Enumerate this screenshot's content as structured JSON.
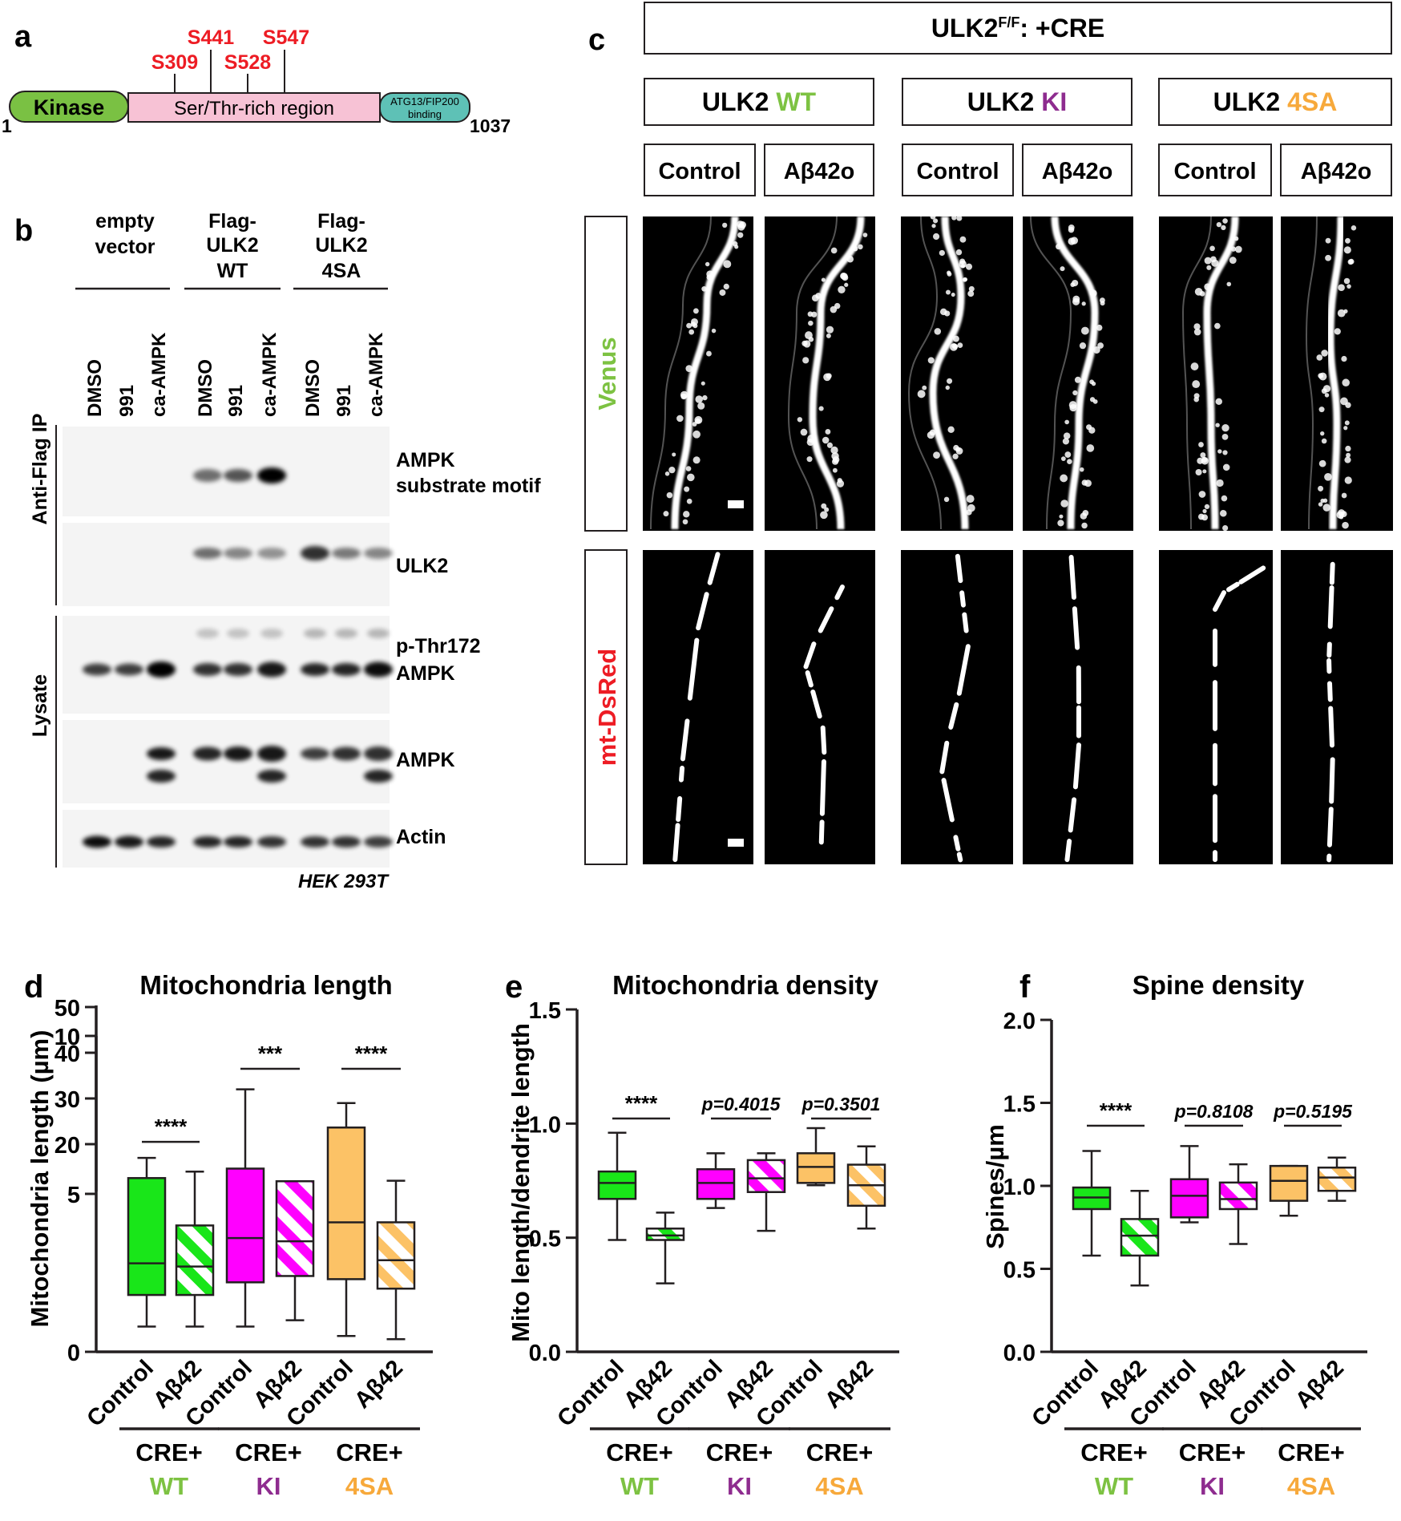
{
  "colors": {
    "wt": "#7dc242",
    "ki": "#8e2c8f",
    "sa4": "#f7a93b",
    "red": "#ed1c24",
    "green_box": "#19e619",
    "magenta_box": "#ff00ff",
    "orange_box": "#fcc266",
    "kinase": "#7ac143",
    "ser": "#f7c2d5",
    "atg": "#5ec1b6"
  },
  "panel_a": {
    "letter": "a",
    "kinase": "Kinase",
    "ser_region": "Ser/Thr-rich region",
    "atg_line1": "ATG13/FIP200",
    "atg_line2": "binding",
    "start": "1",
    "end": "1037",
    "sites": [
      "S309",
      "S441",
      "S528",
      "S547"
    ]
  },
  "panel_b": {
    "letter": "b",
    "groups": [
      {
        "line1": "",
        "line2": "empty",
        "line3": "vector"
      },
      {
        "line1": "Flag-",
        "line2": "ULK2",
        "line3": "WT"
      },
      {
        "line1": "Flag-",
        "line2": "ULK2",
        "line3": "4SA"
      }
    ],
    "lanes": [
      "DMSO",
      "991",
      "ca-AMPK",
      "DMSO",
      "991",
      "ca-AMPK",
      "DMSO",
      "991",
      "ca-AMPK"
    ],
    "side_ip": "Anti-Flag IP",
    "side_lysate": "Lysate",
    "blot_labels": [
      [
        "AMPK",
        "substrate motif"
      ],
      [
        "ULK2"
      ],
      [
        "p-Thr172",
        "AMPK"
      ],
      [
        "AMPK"
      ],
      [
        "Actin"
      ]
    ],
    "cell_line": "HEK 293T"
  },
  "panel_c": {
    "letter": "c",
    "header_main": "ULK2",
    "header_sup": "F/F",
    "header_rest": ": +CRE",
    "genotypes": [
      {
        "prefix": "ULK2 ",
        "name": "WT"
      },
      {
        "prefix": "ULK2 ",
        "name": "KI"
      },
      {
        "prefix": "ULK2 ",
        "name": "4SA"
      }
    ],
    "conditions": [
      "Control",
      "Aβ42o",
      "Control",
      "Aβ42o",
      "Control",
      "Aβ42o"
    ],
    "rows": [
      "Venus",
      "mt-DsRed"
    ]
  },
  "chart_data": [
    {
      "panel": "d",
      "type": "box",
      "title": "Mitochondria length",
      "ylabel": "Mitochondria length (µm)",
      "y_axis_break": {
        "lower": [
          0,
          10
        ],
        "upper": [
          10,
          50
        ]
      },
      "lower_ticks": [
        0,
        5,
        10
      ],
      "upper_ticks": [
        10,
        20,
        30,
        40,
        50
      ],
      "categories": [
        "Control",
        "Aβ42",
        "Control",
        "Aβ42",
        "Control",
        "Aβ42"
      ],
      "groups": [
        "WT",
        "KI",
        "4SA"
      ],
      "group_prefix": "CRE+",
      "boxes": [
        {
          "min": 0.8,
          "q1": 1.8,
          "median": 2.8,
          "q3": 5.5,
          "max": 17
        },
        {
          "min": 0.8,
          "q1": 1.8,
          "median": 2.7,
          "q3": 4.0,
          "max": 14
        },
        {
          "min": 0.8,
          "q1": 2.2,
          "median": 3.6,
          "q3": 5.8,
          "max": 32
        },
        {
          "min": 1.0,
          "q1": 2.4,
          "median": 3.5,
          "q3": 5.4,
          "max": 11
        },
        {
          "min": 0.5,
          "q1": 2.3,
          "median": 4.1,
          "q3": 7.1,
          "max": 29
        },
        {
          "min": 0.4,
          "q1": 2.0,
          "median": 2.9,
          "q3": 4.1,
          "max": 12
        }
      ],
      "significance": [
        "****",
        "***",
        "****"
      ]
    },
    {
      "panel": "e",
      "type": "box",
      "title": "Mitochondria density",
      "ylabel": "Mito length/dendrite length",
      "ylim": [
        0,
        1.5
      ],
      "ticks": [
        "0.0",
        "0.5",
        "1.0",
        "1.5"
      ],
      "categories": [
        "Control",
        "Aβ42",
        "Control",
        "Aβ42",
        "Control",
        "Aβ42"
      ],
      "groups": [
        "WT",
        "KI",
        "4SA"
      ],
      "group_prefix": "CRE+",
      "boxes": [
        {
          "min": 0.49,
          "q1": 0.67,
          "median": 0.74,
          "q3": 0.79,
          "max": 0.96
        },
        {
          "min": 0.3,
          "q1": 0.49,
          "median": 0.51,
          "q3": 0.54,
          "max": 0.61
        },
        {
          "min": 0.63,
          "q1": 0.67,
          "median": 0.74,
          "q3": 0.8,
          "max": 0.87
        },
        {
          "min": 0.53,
          "q1": 0.7,
          "median": 0.76,
          "q3": 0.84,
          "max": 0.87
        },
        {
          "min": 0.73,
          "q1": 0.74,
          "median": 0.81,
          "q3": 0.87,
          "max": 0.98
        },
        {
          "min": 0.54,
          "q1": 0.64,
          "median": 0.73,
          "q3": 0.82,
          "max": 0.9
        }
      ],
      "significance": [
        "****",
        "p=0.4015",
        "p=0.3501"
      ]
    },
    {
      "panel": "f",
      "type": "box",
      "title": "Spine density",
      "ylabel": "Spines/µm",
      "ylim": [
        0,
        2.0
      ],
      "ticks": [
        "0.0",
        "0.5",
        "1.0",
        "1.5",
        "2.0"
      ],
      "categories": [
        "Control",
        "Aβ42",
        "Control",
        "Aβ42",
        "Control",
        "Aβ42"
      ],
      "groups": [
        "WT",
        "KI",
        "4SA"
      ],
      "group_prefix": "CRE+",
      "boxes": [
        {
          "min": 0.58,
          "q1": 0.86,
          "median": 0.93,
          "q3": 0.99,
          "max": 1.21
        },
        {
          "min": 0.4,
          "q1": 0.58,
          "median": 0.7,
          "q3": 0.8,
          "max": 0.97
        },
        {
          "min": 0.78,
          "q1": 0.81,
          "median": 0.94,
          "q3": 1.04,
          "max": 1.24
        },
        {
          "min": 0.65,
          "q1": 0.86,
          "median": 0.92,
          "q3": 1.02,
          "max": 1.13
        },
        {
          "min": 0.82,
          "q1": 0.91,
          "median": 1.03,
          "q3": 1.12,
          "max": 1.12
        },
        {
          "min": 0.91,
          "q1": 0.97,
          "median": 1.05,
          "q3": 1.11,
          "max": 1.17
        }
      ],
      "significance": [
        "****",
        "p=0.8108",
        "p=0.5195"
      ]
    }
  ]
}
